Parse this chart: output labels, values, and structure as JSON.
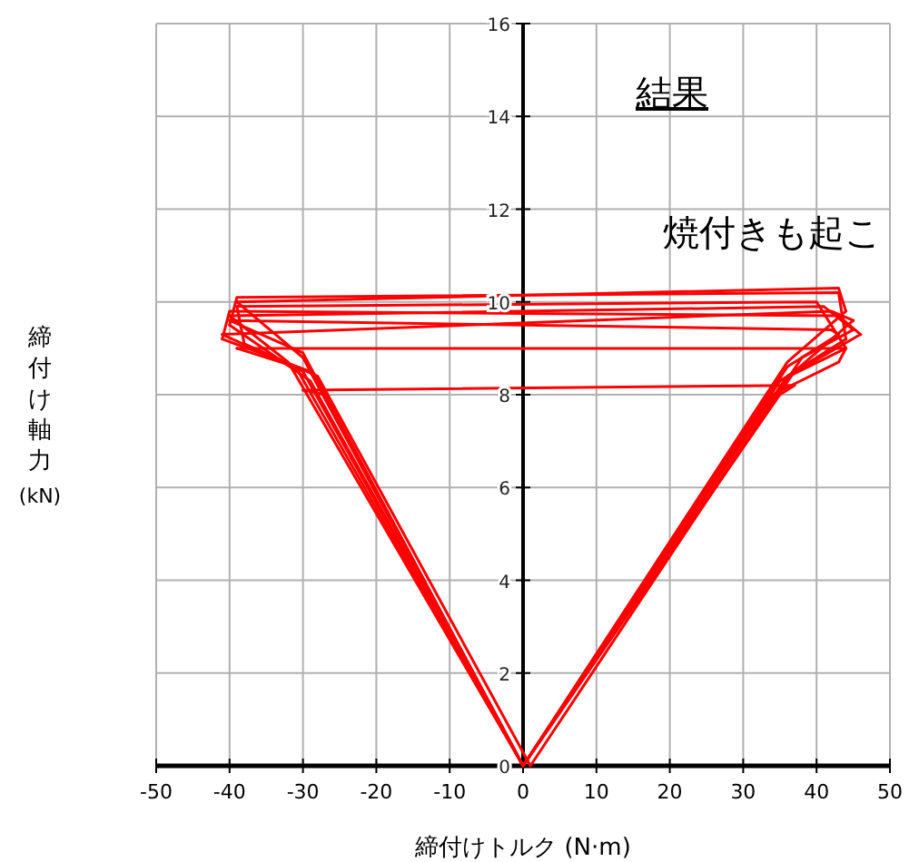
{
  "chart_data": {
    "type": "line",
    "xlabel": "締付けトルク (N·m)",
    "ylabel": "締付け軸力 (kN)",
    "xlim": [
      -50,
      50
    ],
    "xticks": [
      -50,
      -40,
      -30,
      -20,
      -10,
      0,
      10,
      20,
      30,
      40,
      50
    ],
    "ylim": [
      0,
      16
    ],
    "yticks": [
      0,
      2,
      4,
      6,
      8,
      10,
      12,
      14,
      16
    ],
    "grid": true,
    "line_style": "solid",
    "marker": "none",
    "annotations": [
      "結果",
      "焼付きも起こ"
    ],
    "series": [
      {
        "color": "#ff0000",
        "x": [
          0,
          -29,
          -40
        ],
        "values": [
          0,
          8.3,
          9.5
        ]
      },
      {
        "color": "#ff0000",
        "x": [
          -40,
          -39,
          43,
          44
        ],
        "values": [
          9.5,
          10.1,
          10.2,
          9.2
        ]
      },
      {
        "color": "#ff0000",
        "x": [
          44,
          36,
          0,
          -30,
          -41
        ],
        "values": [
          9.2,
          8.4,
          0,
          8.5,
          9.3
        ]
      },
      {
        "color": "#ff0000",
        "x": [
          -41,
          42,
          45
        ],
        "values": [
          9.3,
          9.8,
          9.6
        ]
      },
      {
        "color": "#ff0000",
        "x": [
          45,
          37,
          0,
          -31,
          -39
        ],
        "values": [
          9.6,
          8.5,
          0,
          8.6,
          9.0
        ]
      },
      {
        "color": "#ff0000",
        "x": [
          -39,
          44
        ],
        "values": [
          9.0,
          9.0
        ]
      },
      {
        "color": "#ff0000",
        "x": [
          44,
          43,
          34,
          0,
          -27,
          -30
        ],
        "values": [
          9.0,
          8.7,
          8.0,
          0,
          8.0,
          8.1
        ]
      },
      {
        "color": "#ff0000",
        "x": [
          -30,
          37
        ],
        "values": [
          8.1,
          8.2
        ]
      },
      {
        "color": "#ff0000",
        "x": [
          37,
          35,
          0,
          -32,
          -40
        ],
        "values": [
          8.2,
          8.0,
          0,
          8.7,
          9.7
        ]
      },
      {
        "color": "#ff0000",
        "x": [
          -40,
          41,
          45
        ],
        "values": [
          9.7,
          9.9,
          9.4
        ]
      },
      {
        "color": "#ff0000",
        "x": [
          45,
          38,
          1,
          -28,
          -38,
          -39
        ],
        "values": [
          9.4,
          8.8,
          0,
          8.4,
          9.1,
          9.9
        ]
      },
      {
        "color": "#ff0000",
        "x": [
          -39,
          40,
          44
        ],
        "values": [
          9.9,
          10.0,
          9.0
        ]
      },
      {
        "color": "#ff0000",
        "x": [
          44,
          35,
          0,
          -30,
          -40
        ],
        "values": [
          9.0,
          8.3,
          0,
          8.9,
          9.6
        ]
      },
      {
        "color": "#ff0000",
        "x": [
          -40,
          42,
          43
        ],
        "values": [
          9.6,
          9.4,
          9.3
        ]
      },
      {
        "color": "#ff0000",
        "x": [
          43,
          36,
          0,
          -29,
          -41
        ],
        "values": [
          9.3,
          8.6,
          0,
          8.5,
          9.2
        ]
      },
      {
        "color": "#ff0000",
        "x": [
          -41,
          -40,
          43,
          46
        ],
        "values": [
          9.2,
          9.8,
          9.7,
          9.3
        ]
      },
      {
        "color": "#ff0000",
        "x": [
          46,
          35,
          0,
          -30,
          -39
        ],
        "values": [
          9.3,
          8.3,
          0,
          8.8,
          10.0
        ]
      },
      {
        "color": "#ff0000",
        "x": [
          -39,
          43,
          44
        ],
        "values": [
          10.0,
          10.3,
          9.8
        ]
      },
      {
        "color": "#ff0000",
        "x": [
          44,
          36,
          0
        ],
        "values": [
          9.8,
          8.7,
          0
        ]
      }
    ]
  }
}
